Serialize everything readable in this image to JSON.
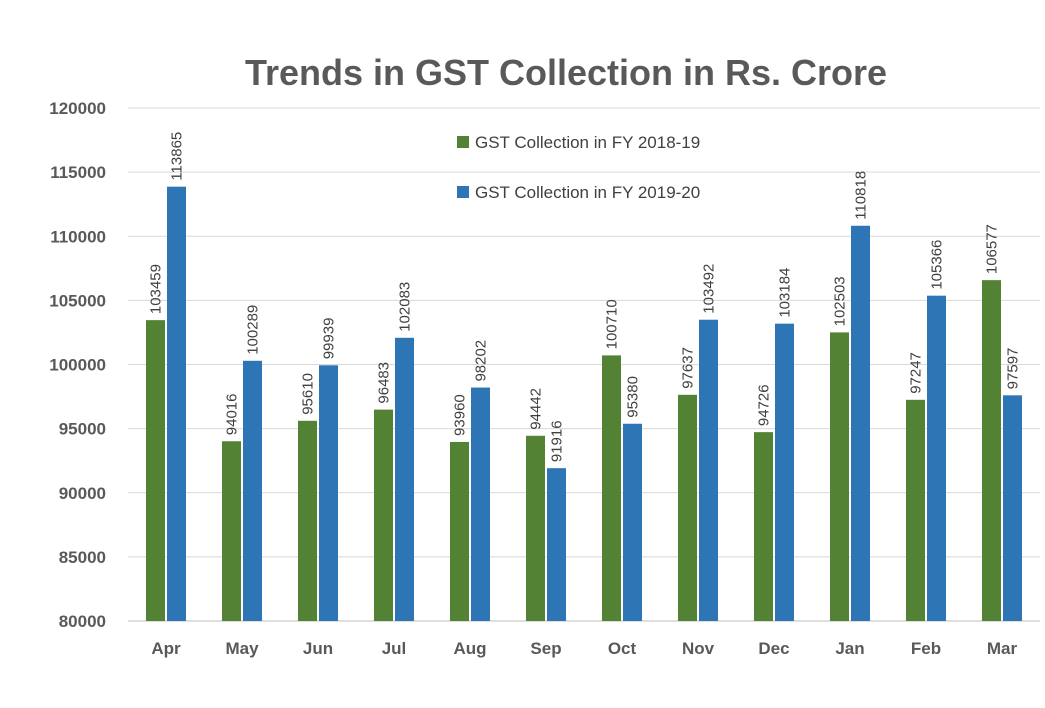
{
  "chart_data": {
    "type": "bar",
    "title": "Trends in GST Collection in Rs. Crore",
    "xlabel": "",
    "ylabel": "",
    "ylim": [
      80000,
      120000
    ],
    "yticks": [
      80000,
      85000,
      90000,
      95000,
      100000,
      105000,
      110000,
      115000,
      120000
    ],
    "grid": true,
    "legend_position": "top-center",
    "categories": [
      "Apr",
      "May",
      "Jun",
      "Jul",
      "Aug",
      "Sep",
      "Oct",
      "Nov",
      "Dec",
      "Jan",
      "Feb",
      "Mar"
    ],
    "series": [
      {
        "name": "GST Collection in FY 2018-19",
        "color": "#548235",
        "values": [
          103459,
          94016,
          95610,
          96483,
          93960,
          94442,
          100710,
          97637,
          94726,
          102503,
          97247,
          106577
        ]
      },
      {
        "name": "GST Collection in FY 2019-20",
        "color": "#2E75B6",
        "values": [
          113865,
          100289,
          99939,
          102083,
          98202,
          91916,
          95380,
          103492,
          103184,
          110818,
          105366,
          97597
        ]
      }
    ]
  }
}
